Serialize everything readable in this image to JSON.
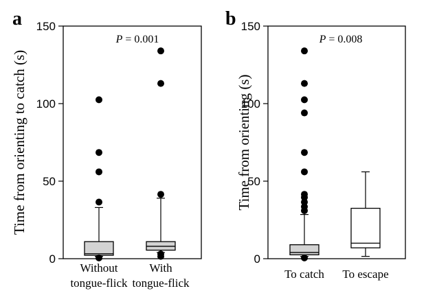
{
  "chart_data": [
    {
      "type": "boxplot",
      "panel_label": "a",
      "ylabel": "Time from orienting to catch (s)",
      "ylim": [
        0,
        150
      ],
      "yticks": [
        0,
        50,
        100,
        150
      ],
      "annotation": {
        "p_symbol": "P",
        "p_value_text": "= 0.001"
      },
      "categories": [
        {
          "label_lines": [
            "Without",
            "tongue-flick"
          ],
          "fill": "#d3d3d3",
          "whisker_low": 1.5,
          "q1": 2.2,
          "median": 3.2,
          "q3": 11,
          "whisker_high": 33,
          "outliers": [
            0.5,
            36.5,
            56,
            68.5,
            102.5
          ]
        },
        {
          "label_lines": [
            "With",
            "tongue-flick"
          ],
          "fill": "#d3d3d3",
          "whisker_low": 4,
          "q1": 5.5,
          "median": 8,
          "q3": 11,
          "whisker_high": 39,
          "outliers": [
            1.5,
            3,
            41.5,
            113,
            134
          ]
        }
      ]
    },
    {
      "type": "boxplot",
      "panel_label": "b",
      "ylabel": "Time from orienting (s)",
      "ylim": [
        0,
        150
      ],
      "yticks": [
        0,
        50,
        100,
        150
      ],
      "annotation": {
        "p_symbol": "P",
        "p_value_text": "= 0.008"
      },
      "categories": [
        {
          "label_lines": [
            "To catch"
          ],
          "fill": "#d3d3d3",
          "whisker_low": 1.5,
          "q1": 2.5,
          "median": 4,
          "q3": 9,
          "whisker_high": 28.5,
          "outliers": [
            0.5,
            31,
            33.5,
            36.5,
            39.5,
            41.5,
            56,
            68.5,
            94,
            102.5,
            113,
            134
          ]
        },
        {
          "label_lines": [
            "To escape"
          ],
          "fill": "#ffffff",
          "whisker_low": 1.5,
          "q1": 7,
          "median": 10,
          "q3": 32.5,
          "whisker_high": 56,
          "outliers": []
        }
      ]
    }
  ]
}
